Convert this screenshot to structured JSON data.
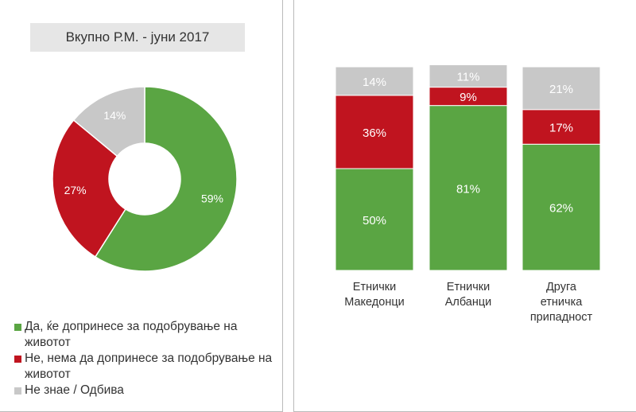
{
  "chart_data": [
    {
      "type": "pie",
      "title": "Вкупно Р.М. - јуни 2017",
      "donut": true,
      "slices": [
        {
          "label": "Да, ќе допринесе за подобрување на животот",
          "value": 59,
          "text": "59%",
          "color": "#5aa543"
        },
        {
          "label": "Не, нема да допринесе за подобрување на животот",
          "value": 27,
          "text": "27%",
          "color": "#c0141f"
        },
        {
          "label": "Не знае / Одбива",
          "value": 14,
          "text": "14%",
          "color": "#c8c8c8"
        }
      ],
      "legend": "bottom"
    },
    {
      "type": "bar",
      "stacked": true,
      "ylim": [
        0,
        100
      ],
      "categories": [
        "Етнички Македонци",
        "Етнички Албанци",
        "Друга етничка припадност"
      ],
      "category_lines": [
        [
          "Етнички",
          "Македонци"
        ],
        [
          "Етнички",
          "Албанци"
        ],
        [
          "Друга",
          "етничка",
          "припадност"
        ]
      ],
      "series": [
        {
          "name": "Да",
          "color": "#5aa543",
          "values": [
            50,
            81,
            62
          ],
          "labels": [
            "50%",
            "81%",
            "62%"
          ]
        },
        {
          "name": "Не",
          "color": "#c0141f",
          "values": [
            36,
            9,
            17
          ],
          "labels": [
            "36%",
            "9%",
            "17%"
          ]
        },
        {
          "name": "Не знае / Одбива",
          "color": "#c8c8c8",
          "values": [
            14,
            11,
            21
          ],
          "labels": [
            "14%",
            "11%",
            "21%"
          ]
        }
      ]
    }
  ]
}
